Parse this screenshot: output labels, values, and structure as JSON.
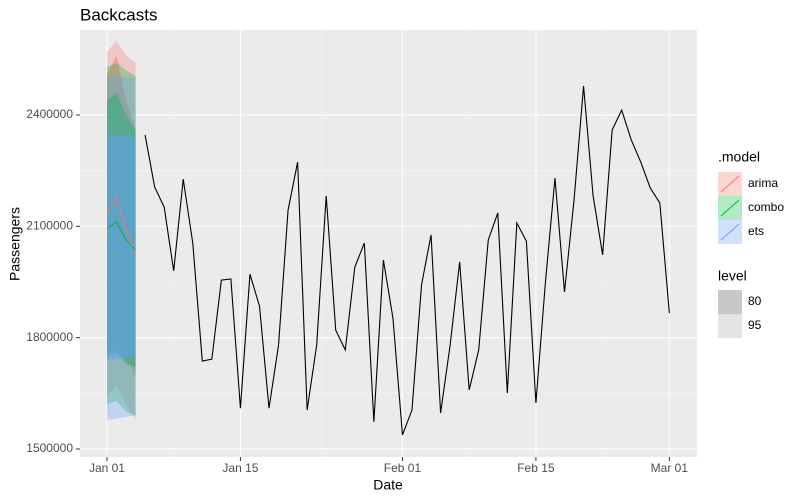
{
  "chart_data": {
    "type": "line",
    "title": "Backcasts",
    "x_label": "Date",
    "y_label": "Passengers",
    "xlim": [
      -2.83,
      61.9
    ],
    "ylim": [
      1478400,
      2629000
    ],
    "xticks": [
      {
        "value": 0,
        "label": "Jan 01"
      },
      {
        "value": 14,
        "label": "Jan 15"
      },
      {
        "value": 31,
        "label": "Feb 01"
      },
      {
        "value": 45,
        "label": "Feb 15"
      },
      {
        "value": 59,
        "label": "Mar 01"
      }
    ],
    "yticks": [
      1500000,
      1800000,
      2100000,
      2400000
    ],
    "grid": true,
    "color": "#000000",
    "x": [
      4,
      5,
      6,
      7,
      8,
      9,
      10,
      11,
      12,
      13,
      14,
      15,
      16,
      17,
      18,
      19,
      20,
      21,
      22,
      23,
      24,
      25,
      26,
      27,
      28,
      29,
      30,
      31,
      32,
      33,
      34,
      35,
      36,
      37,
      38,
      39,
      40,
      41,
      42,
      43,
      44,
      45,
      46,
      47,
      48,
      49,
      50,
      51,
      52,
      53,
      54,
      55,
      56,
      57,
      58,
      59
    ],
    "values": [
      2346000,
      2206000,
      2152000,
      1980000,
      2227000,
      2055000,
      1737000,
      1742000,
      1955000,
      1958000,
      1610000,
      1971000,
      1885000,
      1610000,
      1780000,
      2144000,
      2273000,
      1605000,
      1780000,
      2182000,
      1820000,
      1767000,
      1990000,
      2055000,
      1573000,
      2009000,
      1853000,
      1538000,
      1605000,
      1942000,
      2077000,
      1597000,
      1780000,
      2004000,
      1659000,
      1767000,
      2063000,
      2136000,
      1651000,
      2109000,
      2060000,
      1624000,
      1950000,
      2230000,
      1923000,
      2171000,
      2478000,
      2182000,
      2023000,
      2360000,
      2413000,
      2333000,
      2273000,
      2203000,
      2163000,
      1866000
    ],
    "legend_title": ".model",
    "level_title": "level",
    "levels": [
      80,
      95
    ],
    "series": [
      {
        "name": "arima",
        "color": "#F8766D",
        "x": [
          0,
          1,
          2,
          3
        ],
        "values": [
          2136000,
          2176000,
          2090000,
          2028000
        ],
        "lo80": [
          1760000,
          1790000,
          1740000,
          1700000
        ],
        "hi80": [
          2510000,
          2560000,
          2440000,
          2360000
        ],
        "lo95": [
          1640000,
          1670000,
          1620000,
          1580000
        ],
        "hi95": [
          2570000,
          2600000,
          2560000,
          2540000
        ]
      },
      {
        "name": "combo",
        "color": "#00BA38",
        "x": [
          0,
          1,
          2,
          3
        ],
        "values": [
          2094000,
          2112000,
          2063000,
          2036000
        ],
        "lo80": [
          1750000,
          1760000,
          1730000,
          1720000
        ],
        "hi80": [
          2440000,
          2460000,
          2400000,
          2360000
        ],
        "lo95": [
          1620000,
          1630000,
          1600000,
          1590000
        ],
        "hi95": [
          2530000,
          2540000,
          2520000,
          2505000
        ]
      },
      {
        "name": "ets",
        "color": "#619CFF",
        "x": [
          0,
          1,
          2,
          3
        ],
        "values": [
          2047000,
          2047000,
          2047000,
          2047000
        ],
        "lo80": [
          1740000,
          1744000,
          1747000,
          1750000
        ],
        "hi80": [
          2346000,
          2345000,
          2343000,
          2341000
        ],
        "lo95": [
          1578000,
          1582000,
          1586000,
          1591000
        ],
        "hi95": [
          2508000,
          2505000,
          2502000,
          2500000
        ]
      }
    ]
  }
}
